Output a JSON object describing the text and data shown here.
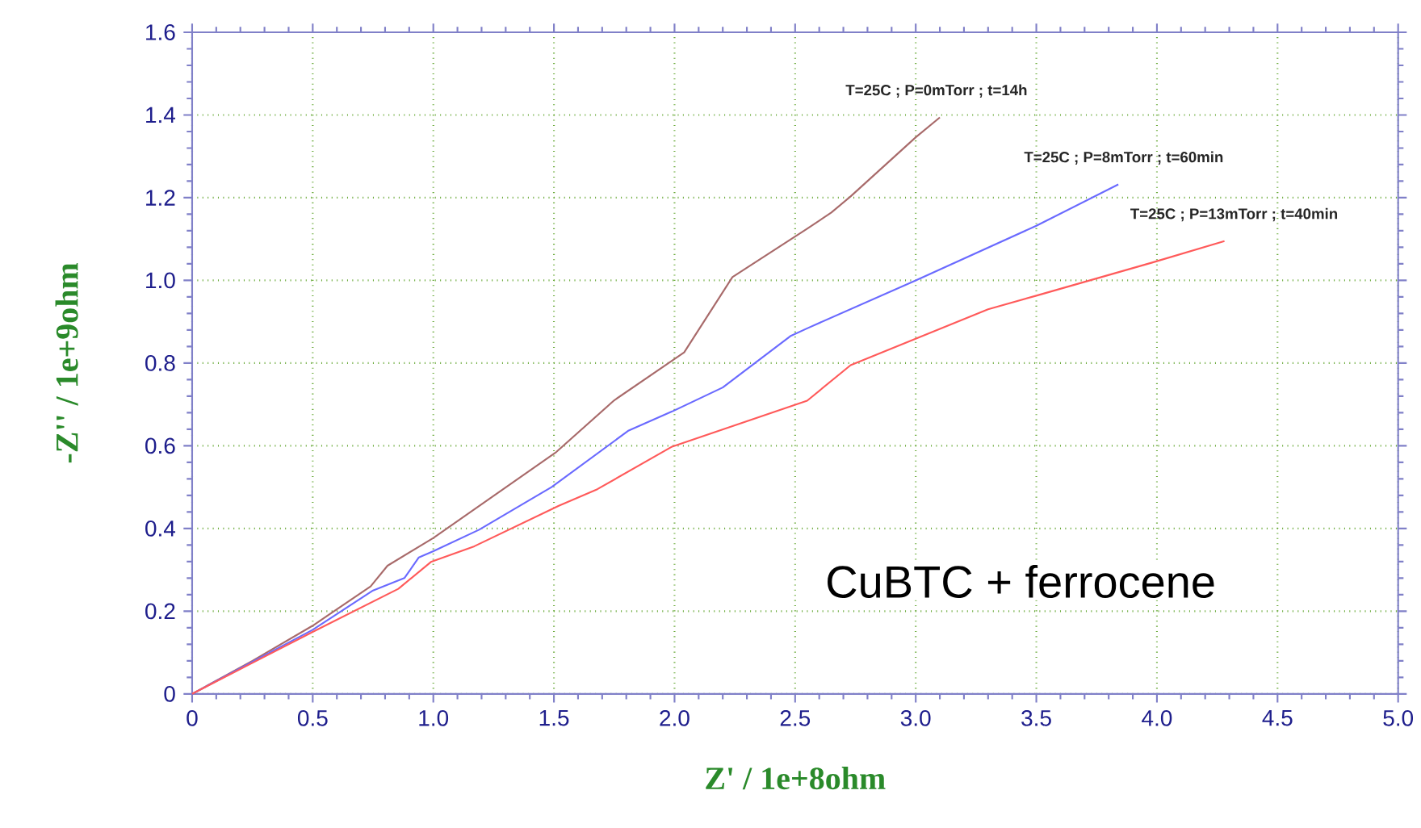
{
  "chart_data": {
    "type": "line",
    "xlabel": "Z' / 1e+8ohm",
    "ylabel": "-Z'' / 1e+9ohm",
    "xlim": [
      0,
      5
    ],
    "ylim": [
      0,
      1.6
    ],
    "xticks": [
      0,
      0.5,
      {
        "value": 1,
        "label": "1.0"
      },
      1.5,
      {
        "value": 2,
        "label": "2.0"
      },
      2.5,
      {
        "value": 3,
        "label": "3.0"
      },
      3.5,
      {
        "value": 4,
        "label": "4.0"
      },
      4.5,
      {
        "value": 5,
        "label": "5.0"
      }
    ],
    "yticks": [
      0,
      0.2,
      0.4,
      0.6,
      0.8,
      {
        "value": 1,
        "label": "1.0"
      },
      1.2,
      1.4,
      1.6
    ],
    "grid": true,
    "annotations": [
      "CuBTC  +  ferrocene"
    ],
    "series": [
      {
        "name": "T=25C ; P=0mTorr ; t=14h",
        "color": "#a86a6a",
        "x": [
          0,
          0.25,
          0.5,
          0.74,
          0.81,
          1.0,
          1.51,
          1.75,
          1.99,
          2.04,
          2.24,
          2.55,
          2.65,
          2.73,
          3.0,
          3.1
        ],
        "values": [
          0,
          0.08,
          0.165,
          0.26,
          0.31,
          0.377,
          0.585,
          0.71,
          0.806,
          0.826,
          1.008,
          1.125,
          1.164,
          1.203,
          1.346,
          1.394
        ]
      },
      {
        "name": "T=25C ; P=8mTorr ; t=60min",
        "color": "#6a6aff",
        "x": [
          0,
          0.5,
          0.75,
          0.88,
          0.94,
          1.0,
          1.19,
          1.49,
          1.81,
          1.99,
          2.2,
          2.48,
          2.55,
          3.0,
          3.5,
          3.84
        ],
        "values": [
          0,
          0.155,
          0.25,
          0.28,
          0.33,
          0.345,
          0.397,
          0.5,
          0.637,
          0.683,
          0.741,
          0.865,
          0.884,
          1.0,
          1.132,
          1.232
        ]
      },
      {
        "name": "T=25C ; P=13mTorr ; t=40min",
        "color": "#ff5a5a",
        "x": [
          0,
          0.25,
          0.5,
          0.855,
          0.99,
          1.17,
          1.52,
          1.68,
          1.99,
          2.55,
          2.73,
          3.3,
          3.5,
          3.98,
          4.28
        ],
        "values": [
          0,
          0.075,
          0.15,
          0.254,
          0.319,
          0.357,
          0.455,
          0.495,
          0.598,
          0.709,
          0.795,
          0.93,
          0.963,
          1.043,
          1.095
        ]
      }
    ]
  }
}
